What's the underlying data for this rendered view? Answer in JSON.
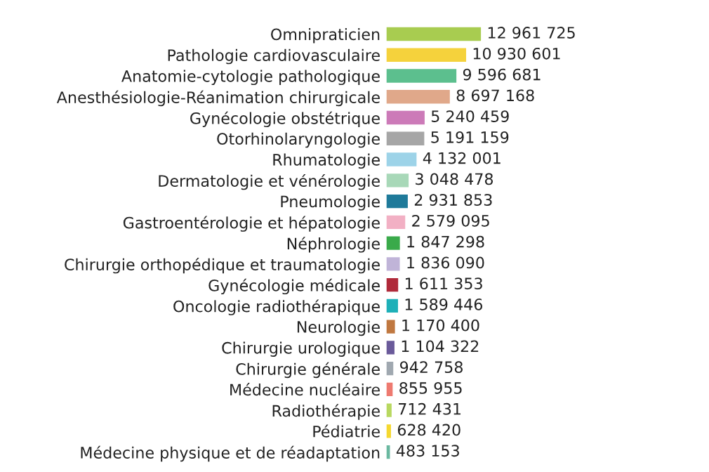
{
  "chart_data": {
    "type": "bar",
    "orientation": "horizontal",
    "categories": [
      "Omnipraticien",
      "Pathologie cardiovasculaire",
      "Anatomie-cytologie pathologique",
      "Anesthésiologie-Réanimation chirurgicale",
      "Gynécologie obstétrique",
      "Otorhinolaryngologie",
      "Rhumatologie",
      "Dermatologie et vénérologie",
      "Pneumologie",
      "Gastroentérologie et hépatologie",
      "Néphrologie",
      "Chirurgie orthopédique et traumatologie",
      "Gynécologie médicale",
      "Oncologie radiothérapique",
      "Neurologie",
      "Chirurgie urologique",
      "Chirurgie générale",
      "Médecine nucléaire",
      "Radiothérapie",
      "Pédiatrie",
      "Médecine physique et de réadaptation"
    ],
    "values": [
      12961725,
      10930601,
      9596681,
      8697168,
      5240459,
      5191159,
      4132001,
      3048478,
      2931853,
      2579095,
      1847298,
      1836090,
      1611353,
      1589446,
      1170400,
      1104322,
      942758,
      855955,
      712431,
      628420,
      483153
    ],
    "value_labels": [
      "12 961 725",
      "10 930 601",
      "9 596 681",
      "8 697 168",
      "5 240 459",
      "5 191 159",
      "4 132 001",
      "3 048 478",
      "2 931 853",
      "2 579 095",
      "1 847 298",
      "1 836 090",
      "1 611 353",
      "1 589 446",
      "1 170 400",
      "1 104 322",
      "942 758",
      "855 955",
      "712 431",
      "628 420",
      "483 153"
    ],
    "colors": [
      "#a8cc50",
      "#f5d23c",
      "#5cbf8e",
      "#e0a88a",
      "#cc7ab8",
      "#a6a6a6",
      "#9dd3e8",
      "#a8d8b8",
      "#1f7a9a",
      "#f2b0c4",
      "#3aaa4a",
      "#c0b4d8",
      "#b02a3a",
      "#1eb0b8",
      "#c07840",
      "#6a5a9a",
      "#a0a8b0",
      "#ee7a70",
      "#b8d860",
      "#f5d830",
      "#6ab8a0"
    ],
    "grid": false,
    "legend": false
  }
}
